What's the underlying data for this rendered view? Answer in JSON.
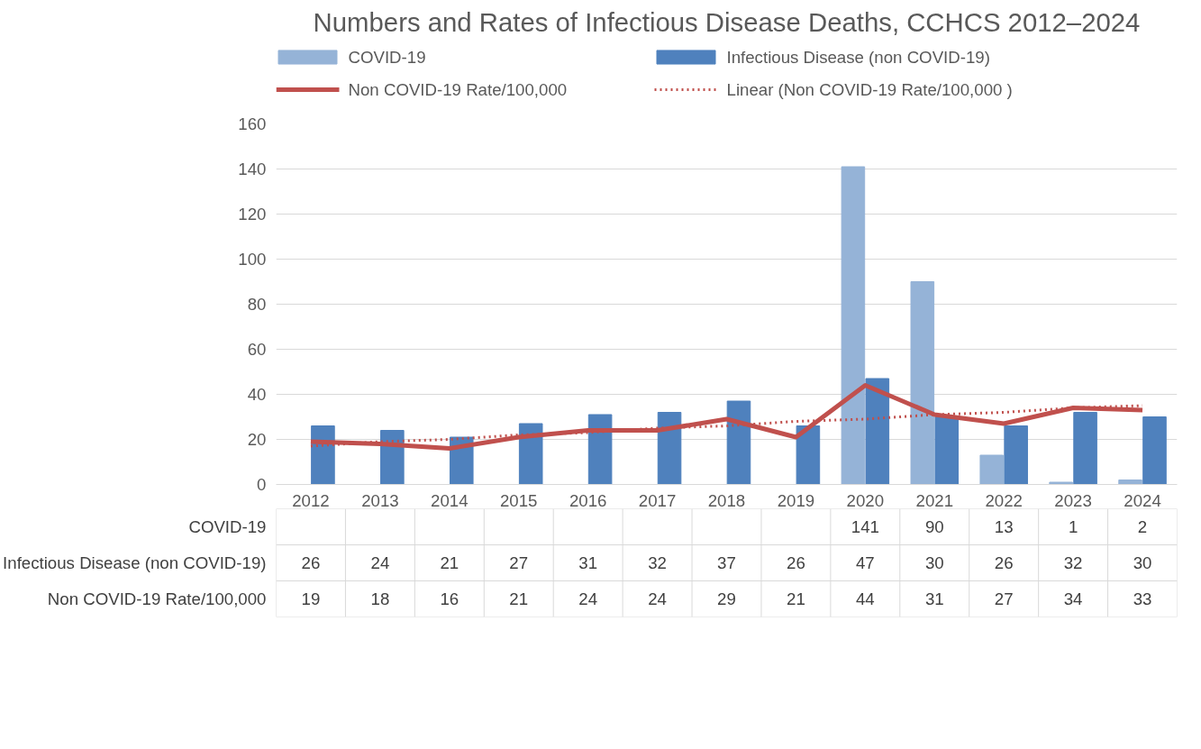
{
  "chart_data": {
    "type": "bar",
    "title": "Numbers and Rates of Infectious Disease Deaths, CCHCS 2012–2024",
    "categories": [
      "2012",
      "2013",
      "2014",
      "2015",
      "2016",
      "2017",
      "2018",
      "2019",
      "2020",
      "2021",
      "2022",
      "2023",
      "2024"
    ],
    "series": [
      {
        "name": "COVID-19",
        "color": "#95b3d7",
        "values": [
          null,
          null,
          null,
          null,
          null,
          null,
          null,
          null,
          141,
          90,
          13,
          1,
          2
        ]
      },
      {
        "name": "Infectious Disease (non COVID-19)",
        "color": "#4f81bd",
        "values": [
          26,
          24,
          21,
          27,
          31,
          32,
          37,
          26,
          47,
          30,
          26,
          32,
          30
        ]
      },
      {
        "name": "Non COVID-19 Rate/100,000",
        "type": "line",
        "color": "#c0504d",
        "line_style": "solid",
        "values": [
          19,
          18,
          16,
          21,
          24,
          24,
          29,
          21,
          44,
          31,
          27,
          34,
          33
        ]
      },
      {
        "name": "Linear (Non COVID-19 Rate/100,000 )",
        "type": "line",
        "color": "#c0504d",
        "line_style": "dotted",
        "values": [
          17,
          19,
          20,
          22,
          23,
          25,
          26,
          28,
          29,
          31,
          32,
          34,
          35
        ],
        "value_labels": [
          null,
          null,
          null,
          null,
          null,
          null,
          null,
          null,
          null,
          null,
          null,
          null,
          null
        ]
      }
    ],
    "ylim": [
      0,
      160
    ],
    "yticks": [
      0,
      20,
      40,
      60,
      80,
      100,
      120,
      140,
      160
    ],
    "grid": "y",
    "legend": "top",
    "data_labels": true
  }
}
